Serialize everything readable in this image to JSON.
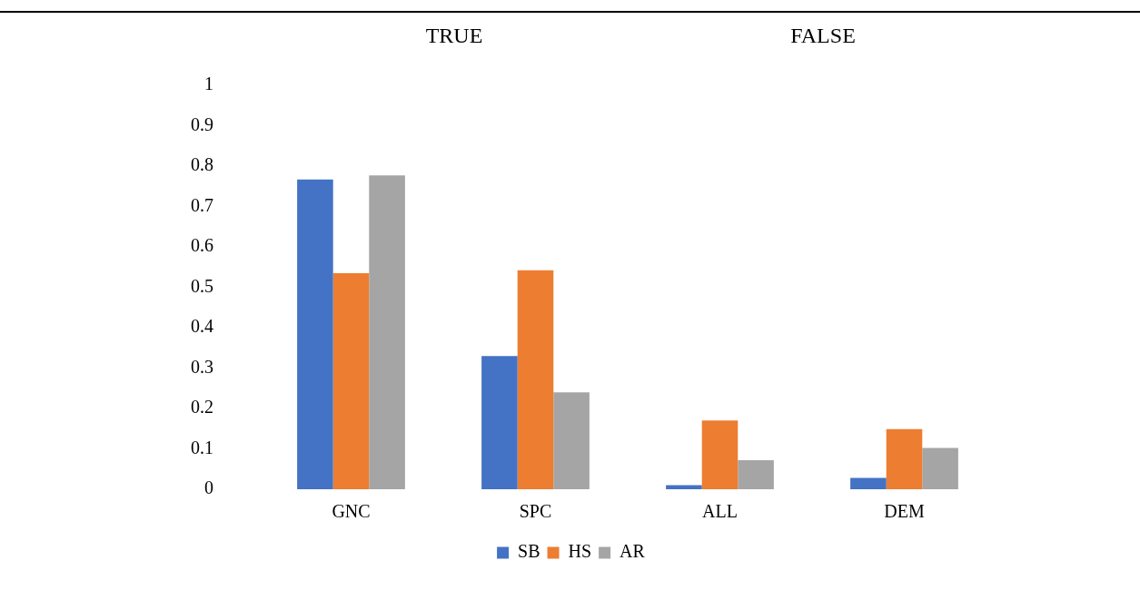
{
  "chart_data": {
    "type": "bar",
    "categories": [
      "GNC",
      "SPC",
      "ALL",
      "DEM"
    ],
    "series": [
      {
        "name": "SB",
        "color": "#4472c4",
        "values": [
          0.767,
          0.33,
          0.01,
          0.028
        ]
      },
      {
        "name": "HS",
        "color": "#ed7d31",
        "values": [
          0.535,
          0.542,
          0.17,
          0.149
        ]
      },
      {
        "name": "AR",
        "color": "#a5a5a5",
        "values": [
          0.777,
          0.24,
          0.072,
          0.102
        ]
      }
    ],
    "annotations": [
      "TRUE",
      "FALSE"
    ],
    "ylim": [
      0,
      1
    ],
    "yticks": [
      0,
      0.1,
      0.2,
      0.3,
      0.4,
      0.5,
      0.6,
      0.7,
      0.8,
      0.9,
      1
    ],
    "grid": false,
    "legend": "bottom"
  }
}
